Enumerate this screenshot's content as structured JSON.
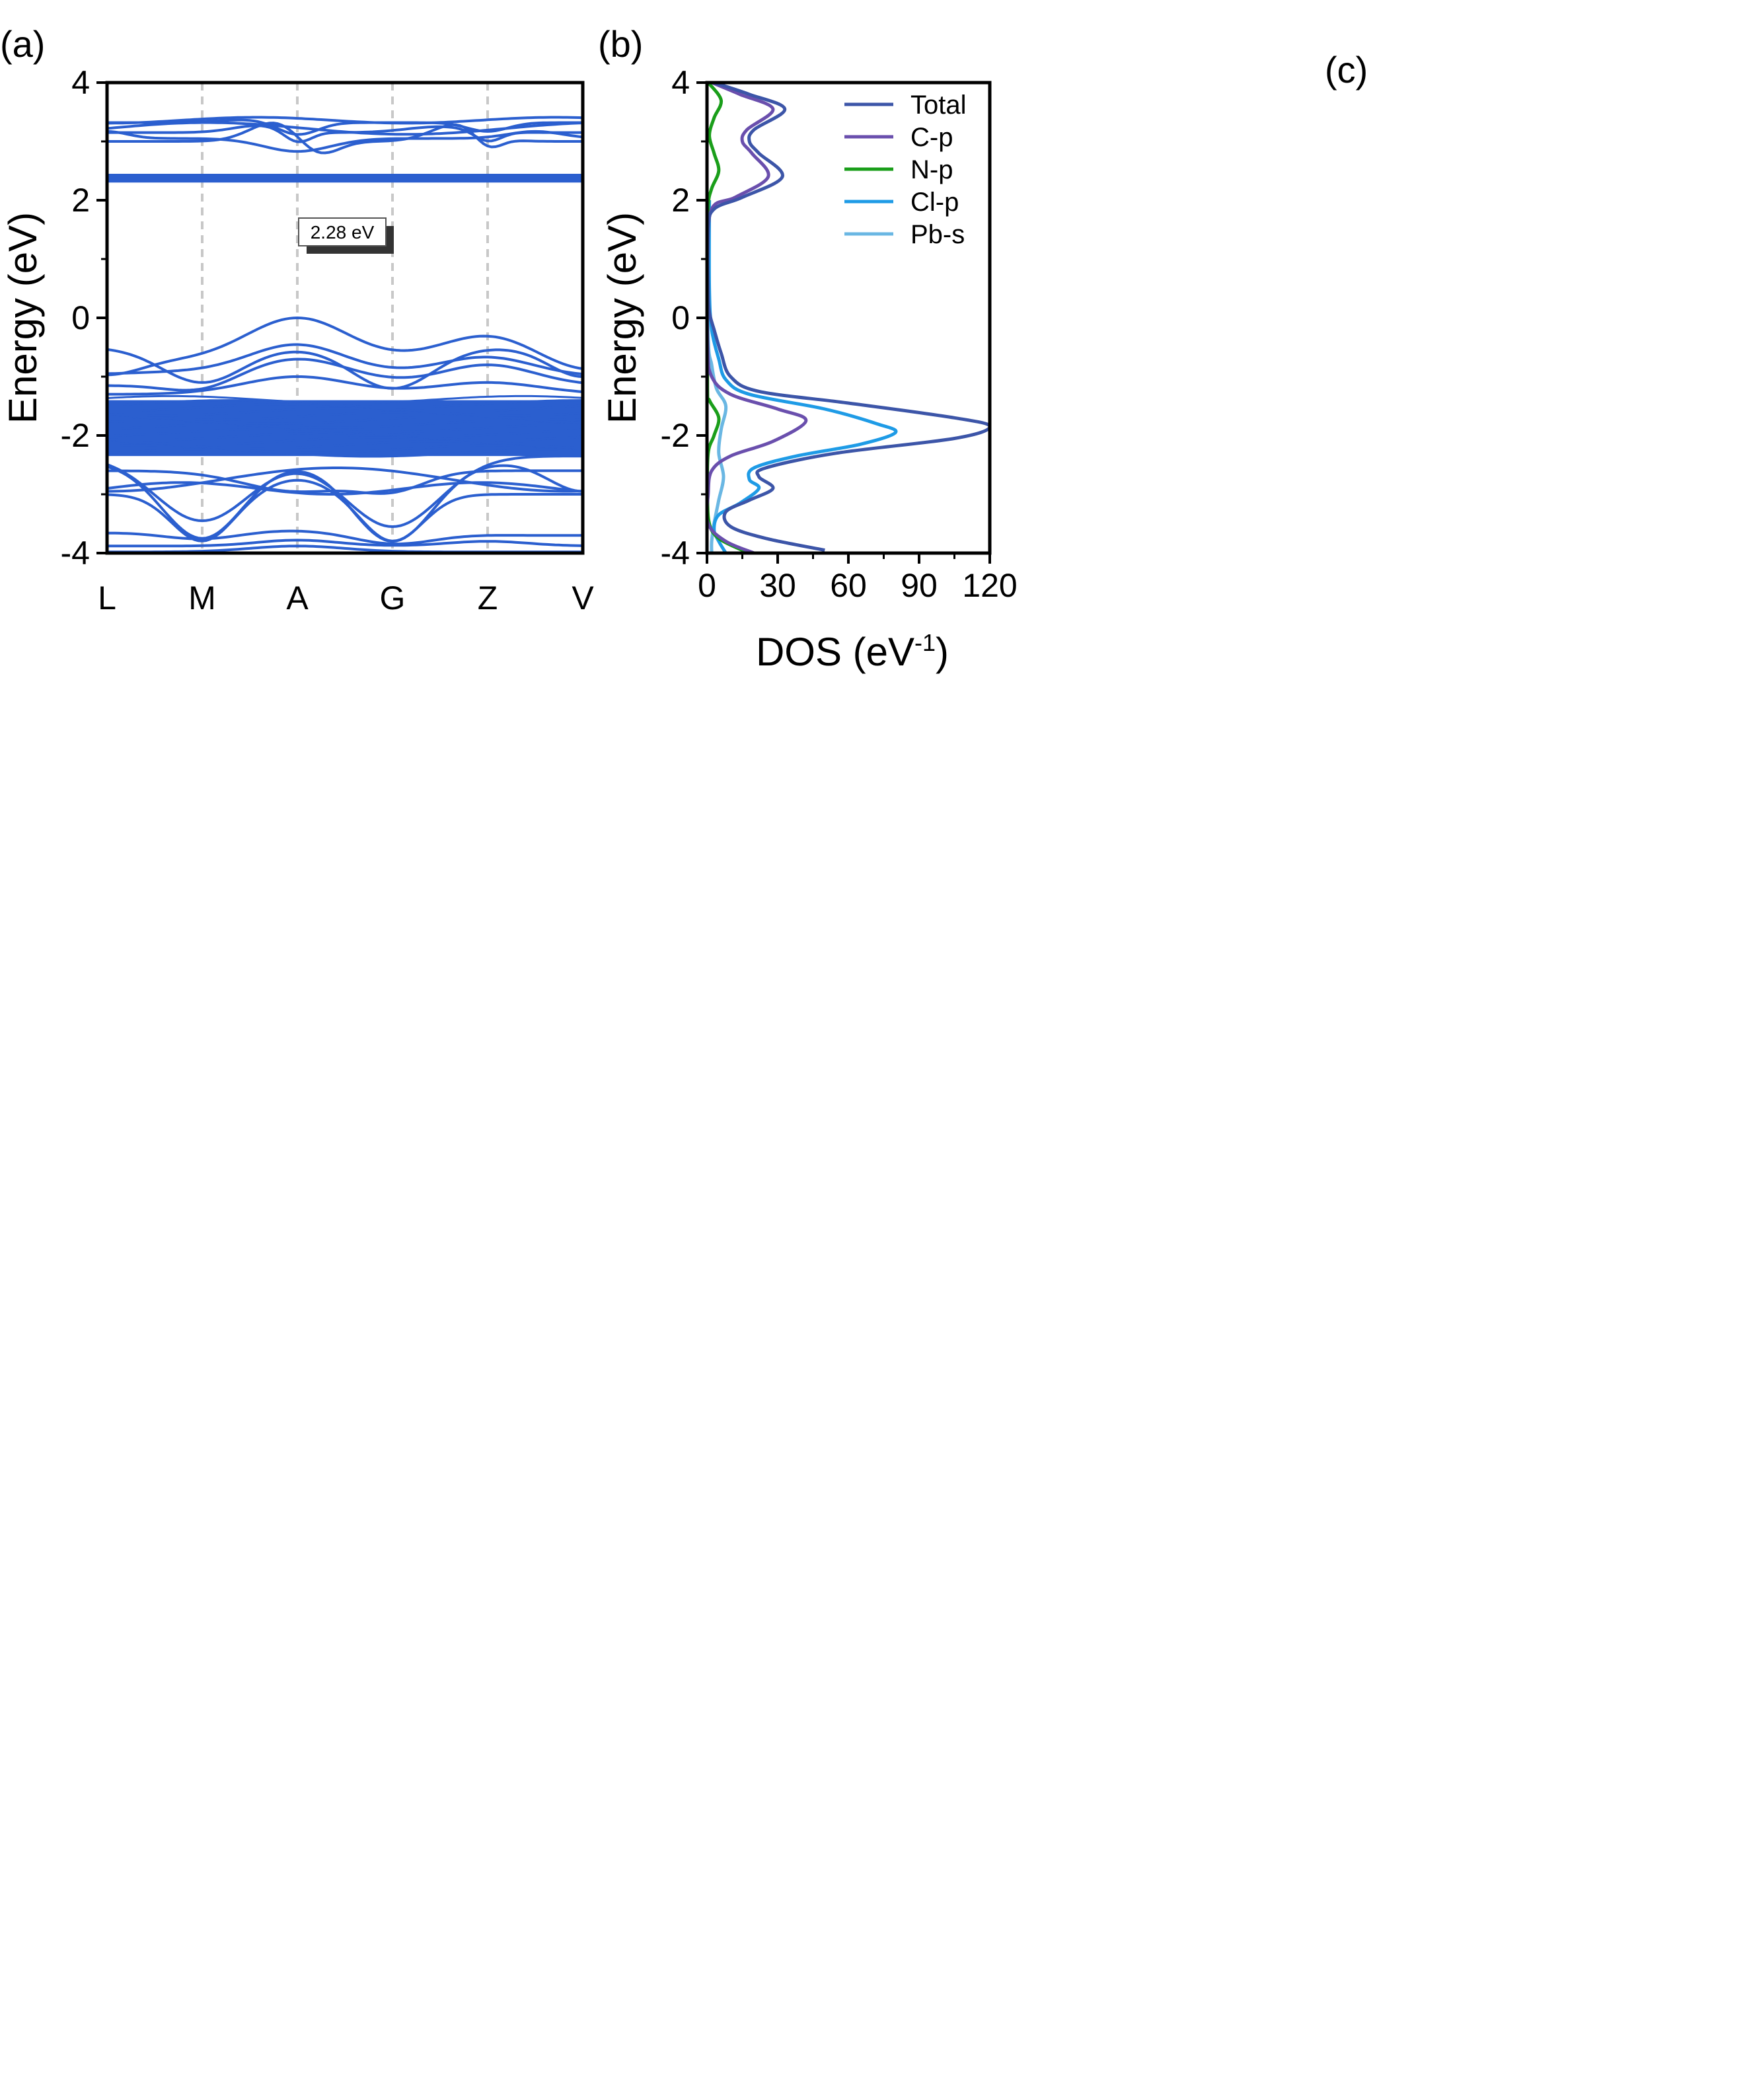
{
  "colors": {
    "band": "#2b5fcf",
    "total": "#3c55a8",
    "c_p": "#6a4fad",
    "n_p": "#1a9e1a",
    "cl_p": "#1e9be6",
    "pb_s": "#6ab7e3",
    "kpath_line": "#c8c8c8"
  },
  "panels": {
    "a": {
      "label": "(a)"
    },
    "b": {
      "label": "(b)"
    },
    "c": {
      "label": "(c)"
    }
  },
  "chart_data": [
    {
      "type": "line",
      "panel": "(a)",
      "ylabel": "Energy (eV)",
      "ylim": [
        -4,
        4
      ],
      "yticks": [
        "-4",
        "-2",
        "0",
        "2",
        "4"
      ],
      "k_points": [
        "L",
        "M",
        "A",
        "G",
        "Z",
        "V"
      ],
      "annotation": "2.28 eV",
      "grid": false,
      "bands_note_ranges_eV": {
        "dense_valence_block": [
          -2.35,
          -1.4
        ],
        "flat_conduction_block": [
          2.3,
          2.45
        ],
        "valence_band_max": 0.0,
        "conduction_band_min": 2.28
      }
    },
    {
      "type": "line",
      "panel": "(b)",
      "ylabel": "Energy (eV)",
      "xlabel_main": "DOS (eV",
      "xlabel_sup": "-1",
      "xlabel_end": ")",
      "xlim": [
        0,
        120
      ],
      "ylim": [
        -4,
        4
      ],
      "xticks": [
        "0",
        "30",
        "60",
        "90",
        "120"
      ],
      "yticks": [
        "-4",
        "-2",
        "0",
        "2",
        "4"
      ],
      "legend_position": "top-right",
      "series": [
        {
          "name": "Total",
          "color_key": "total",
          "points": [
            [
              3,
              4.0
            ],
            [
              18,
              3.8
            ],
            [
              33,
              3.55
            ],
            [
              20,
              3.2
            ],
            [
              18,
              3.0
            ],
            [
              22,
              2.8
            ],
            [
              32,
              2.4
            ],
            [
              15,
              2.05
            ],
            [
              3,
              1.85
            ],
            [
              0.5,
              1.5
            ],
            [
              0.5,
              0.5
            ],
            [
              1,
              0.1
            ],
            [
              3,
              -0.2
            ],
            [
              6,
              -0.6
            ],
            [
              10,
              -1.0
            ],
            [
              22,
              -1.25
            ],
            [
              60,
              -1.45
            ],
            [
              105,
              -1.7
            ],
            [
              120,
              -1.85
            ],
            [
              105,
              -2.05
            ],
            [
              55,
              -2.3
            ],
            [
              25,
              -2.55
            ],
            [
              22,
              -2.7
            ],
            [
              28,
              -2.9
            ],
            [
              18,
              -3.1
            ],
            [
              8,
              -3.3
            ],
            [
              10,
              -3.55
            ],
            [
              25,
              -3.75
            ],
            [
              50,
              -3.95
            ]
          ]
        },
        {
          "name": "C-p",
          "color_key": "c_p",
          "points": [
            [
              2,
              4.0
            ],
            [
              14,
              3.8
            ],
            [
              28,
              3.55
            ],
            [
              17,
              3.2
            ],
            [
              15,
              3.0
            ],
            [
              19,
              2.8
            ],
            [
              26,
              2.4
            ],
            [
              12,
              2.05
            ],
            [
              2,
              1.85
            ],
            [
              0.3,
              1.0
            ],
            [
              0.3,
              -0.5
            ],
            [
              2,
              -1.0
            ],
            [
              10,
              -1.3
            ],
            [
              30,
              -1.55
            ],
            [
              42,
              -1.75
            ],
            [
              28,
              -2.1
            ],
            [
              10,
              -2.35
            ],
            [
              2,
              -2.6
            ],
            [
              0.5,
              -3.0
            ],
            [
              0.5,
              -3.5
            ],
            [
              8,
              -3.8
            ],
            [
              20,
              -4.0
            ]
          ]
        },
        {
          "name": "N-p",
          "color_key": "n_p",
          "points": [
            [
              0.5,
              4.0
            ],
            [
              6,
              3.7
            ],
            [
              3,
              3.4
            ],
            [
              1,
              3.1
            ],
            [
              3,
              2.8
            ],
            [
              5,
              2.5
            ],
            [
              2,
              2.2
            ],
            [
              0.5,
              1.9
            ],
            [
              0.2,
              1.0
            ],
            [
              0.2,
              -1.2
            ],
            [
              1,
              -1.4
            ],
            [
              5,
              -1.7
            ],
            [
              3,
              -2.0
            ],
            [
              0.5,
              -2.3
            ],
            [
              0.2,
              -3.0
            ],
            [
              1,
              -3.5
            ],
            [
              5,
              -3.75
            ],
            [
              15,
              -3.95
            ],
            [
              20,
              -4.0
            ]
          ]
        },
        {
          "name": "Cl-p",
          "color_key": "cl_p",
          "points": [
            [
              1,
              2.0
            ],
            [
              1,
              0.5
            ],
            [
              2,
              -0.2
            ],
            [
              5,
              -0.7
            ],
            [
              8,
              -1.05
            ],
            [
              18,
              -1.3
            ],
            [
              50,
              -1.55
            ],
            [
              72,
              -1.8
            ],
            [
              80,
              -1.95
            ],
            [
              65,
              -2.15
            ],
            [
              38,
              -2.35
            ],
            [
              20,
              -2.55
            ],
            [
              18,
              -2.75
            ],
            [
              22,
              -2.9
            ],
            [
              14,
              -3.15
            ],
            [
              5,
              -3.35
            ],
            [
              3,
              -3.6
            ],
            [
              5,
              -3.8
            ],
            [
              8,
              -4.0
            ]
          ]
        },
        {
          "name": "Pb-s",
          "color_key": "pb_s",
          "points": [
            [
              0.5,
              2.0
            ],
            [
              0.5,
              -0.3
            ],
            [
              2,
              -0.8
            ],
            [
              4,
              -1.2
            ],
            [
              8,
              -1.5
            ],
            [
              6,
              -1.9
            ],
            [
              5,
              -2.3
            ],
            [
              7,
              -2.7
            ],
            [
              5,
              -3.1
            ],
            [
              3,
              -3.5
            ],
            [
              2,
              -3.8
            ],
            [
              2,
              -4.0
            ]
          ]
        }
      ]
    }
  ]
}
